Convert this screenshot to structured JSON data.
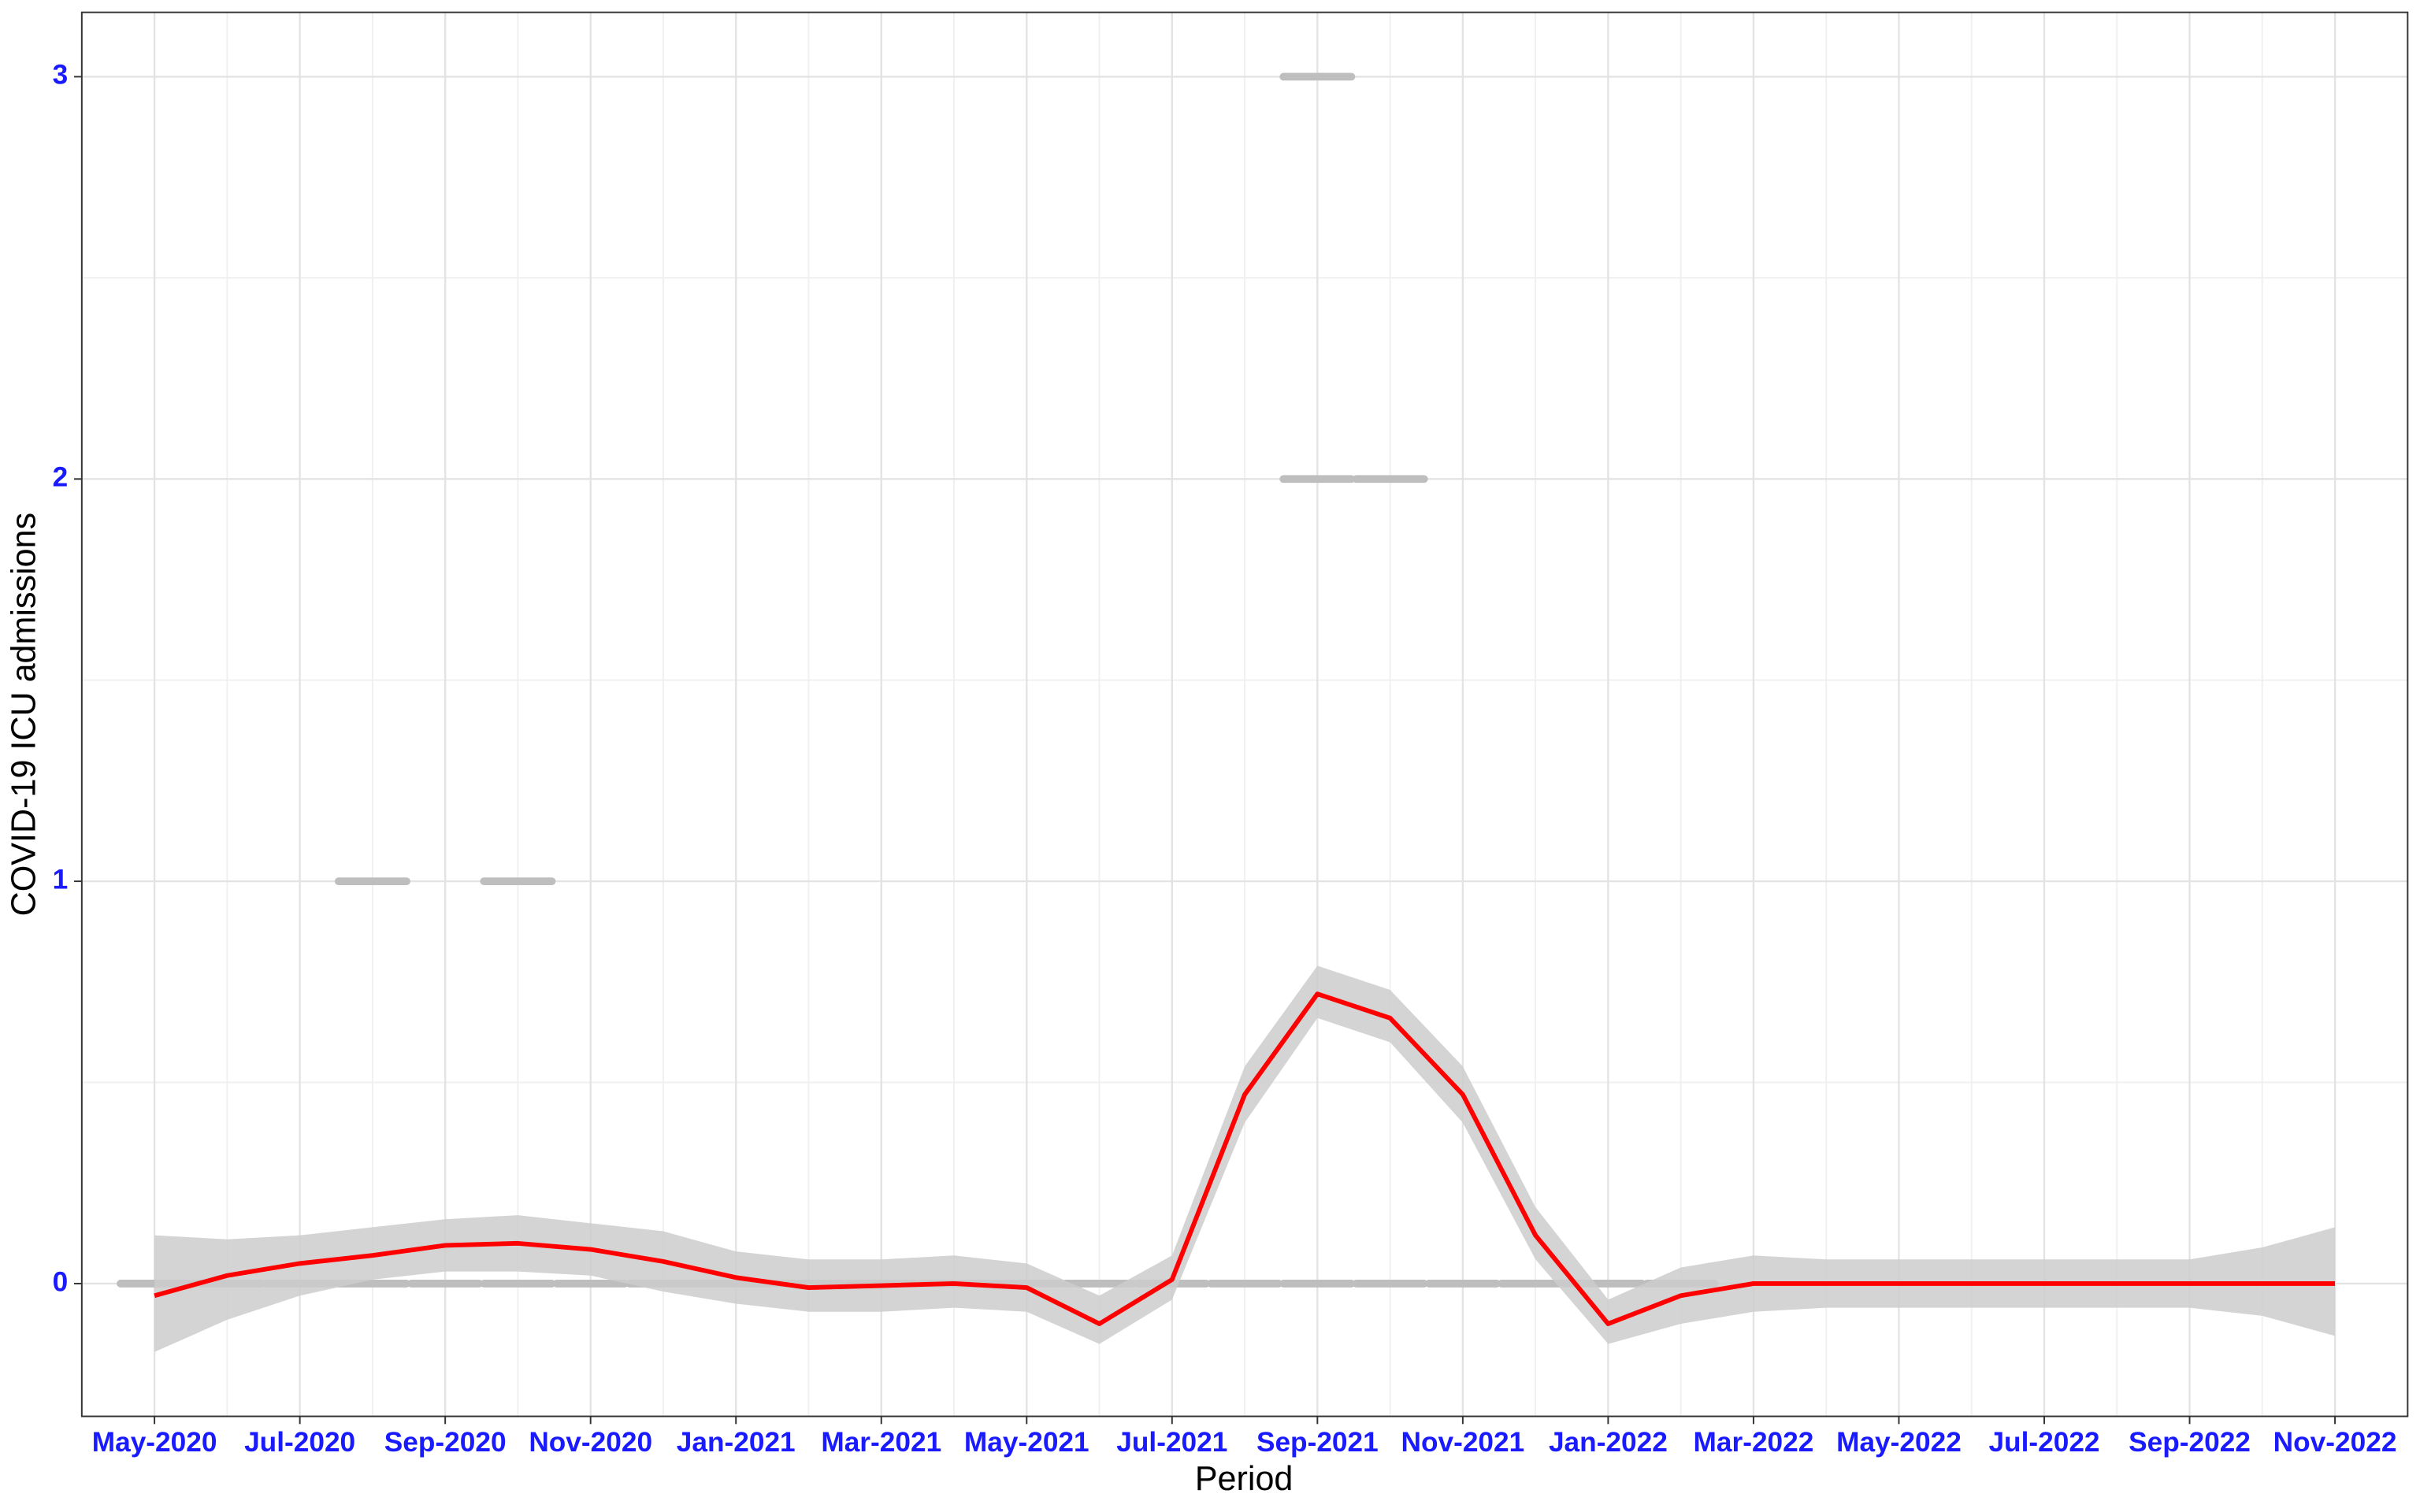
{
  "chart_data": {
    "type": "line",
    "x_label": "Period",
    "y_label": "COVID-19 ICU admissions",
    "x": [
      "2020-05",
      "2020-06",
      "2020-07",
      "2020-08",
      "2020-09",
      "2020-10",
      "2020-11",
      "2020-12",
      "2021-01",
      "2021-02",
      "2021-03",
      "2021-04",
      "2021-05",
      "2021-06",
      "2021-07",
      "2021-08",
      "2021-09",
      "2021-10",
      "2021-11",
      "2021-12",
      "2022-01",
      "2022-02",
      "2022-03",
      "2022-04",
      "2022-05",
      "2022-06",
      "2022-07",
      "2022-08",
      "2022-09",
      "2022-10",
      "2022-11"
    ],
    "series": [
      {
        "color": "#ff0000",
        "values": [
          -0.03,
          0.02,
          0.05,
          0.07,
          0.095,
          0.1,
          0.085,
          0.055,
          0.015,
          -0.01,
          -0.005,
          0,
          -0.01,
          -0.1,
          0.01,
          0.47,
          0.72,
          0.66,
          0.47,
          0.12,
          -0.1,
          -0.03,
          0,
          0,
          0,
          0,
          0,
          0,
          0,
          0,
          0
        ]
      }
    ],
    "band": {
      "color": "#cccccc",
      "lower": [
        -0.17,
        -0.09,
        -0.03,
        0.01,
        0.03,
        0.03,
        0.02,
        -0.02,
        -0.05,
        -0.07,
        -0.07,
        -0.06,
        -0.07,
        -0.15,
        -0.04,
        0.4,
        0.66,
        0.6,
        0.4,
        0.06,
        -0.15,
        -0.1,
        -0.07,
        -0.06,
        -0.06,
        -0.06,
        -0.06,
        -0.06,
        -0.06,
        -0.08,
        -0.13
      ],
      "upper": [
        0.12,
        0.11,
        0.12,
        0.14,
        0.16,
        0.17,
        0.15,
        0.13,
        0.08,
        0.06,
        0.06,
        0.07,
        0.05,
        -0.03,
        0.07,
        0.54,
        0.79,
        0.73,
        0.54,
        0.19,
        -0.04,
        0.04,
        0.07,
        0.06,
        0.06,
        0.06,
        0.06,
        0.06,
        0.06,
        0.09,
        0.14
      ]
    },
    "points": {
      "color": "#bebebe",
      "x": [
        "2020-05",
        "2020-06",
        "2020-07",
        "2020-08",
        "2020-09",
        "2020-10",
        "2020-11",
        "2020-12",
        "2021-01",
        "2021-02",
        "2021-03",
        "2021-04",
        "2021-05",
        "2021-06",
        "2021-07",
        "2021-08",
        "2021-09",
        "2021-10",
        "2021-11",
        "2021-12",
        "2022-01",
        "2022-02",
        "2020-08",
        "2020-10",
        "2021-09",
        "2021-09",
        "2021-10"
      ],
      "values": [
        0,
        0,
        0,
        0,
        0,
        0,
        0,
        0,
        0,
        0,
        0,
        0,
        0,
        0,
        0,
        0,
        0,
        0,
        0,
        0,
        0,
        0,
        1,
        1,
        3,
        2,
        2
      ]
    },
    "xlim": [
      "2020-04",
      "2022-12"
    ],
    "xticks": [
      {
        "value": "2020-05",
        "label": "May-2020"
      },
      {
        "value": "2020-07",
        "label": "Jul-2020"
      },
      {
        "value": "2020-09",
        "label": "Sep-2020"
      },
      {
        "value": "2020-11",
        "label": "Nov-2020"
      },
      {
        "value": "2021-01",
        "label": "Jan-2021"
      },
      {
        "value": "2021-03",
        "label": "Mar-2021"
      },
      {
        "value": "2021-05",
        "label": "May-2021"
      },
      {
        "value": "2021-07",
        "label": "Jul-2021"
      },
      {
        "value": "2021-09",
        "label": "Sep-2021"
      },
      {
        "value": "2021-11",
        "label": "Nov-2021"
      },
      {
        "value": "2022-01",
        "label": "Jan-2022"
      },
      {
        "value": "2022-03",
        "label": "Mar-2022"
      },
      {
        "value": "2022-05",
        "label": "May-2022"
      },
      {
        "value": "2022-07",
        "label": "Jul-2022"
      },
      {
        "value": "2022-09",
        "label": "Sep-2022"
      },
      {
        "value": "2022-11",
        "label": "Nov-2022"
      }
    ],
    "ylim": [
      -0.33,
      3.16
    ],
    "yticks": [
      0,
      1,
      2,
      3
    ],
    "y_minor_ticks": [
      0.5,
      1.5,
      2.5
    ],
    "grid": true
  }
}
